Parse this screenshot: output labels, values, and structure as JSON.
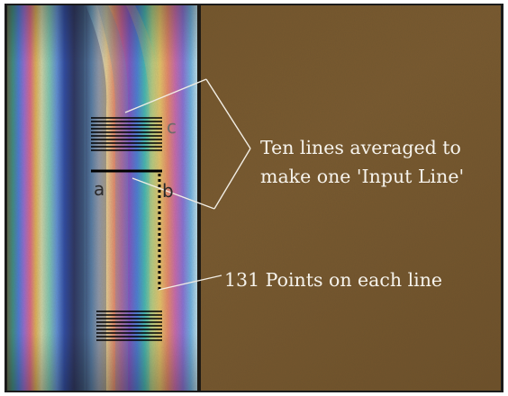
{
  "figure": {
    "annotations": {
      "input_line_label_1": "Ten lines averaged to",
      "input_line_label_2": "make one 'Input Line'",
      "points_label": "131 Points on each line"
    },
    "markers": {
      "a": "a",
      "b": "b",
      "c": "c"
    },
    "counts": {
      "upper_line_group": 10,
      "lower_line_group": 10
    },
    "colors": {
      "background_panel": "#7a5a2e",
      "annotation_text": "#f6f3ec",
      "line_color": "#000000",
      "border": "#1b1b1b"
    }
  }
}
